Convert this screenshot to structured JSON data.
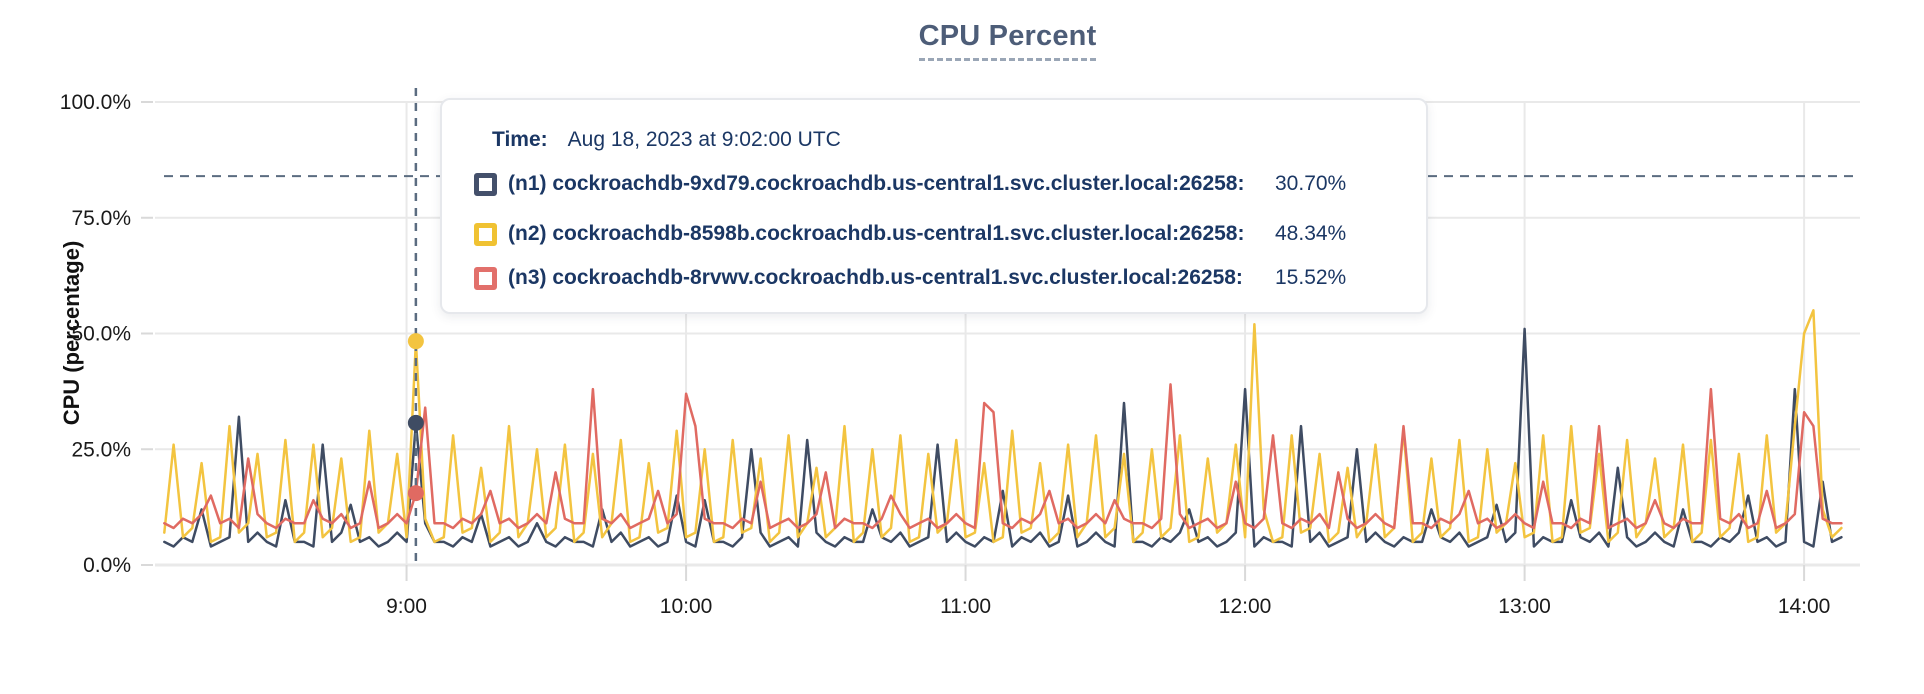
{
  "page": {
    "title": "CPU Percent"
  },
  "axes": {
    "ylabel": "CPU (percentage)"
  },
  "tooltip": {
    "time_label": "Time:",
    "time_value": "Aug 18, 2023 at 9:02:00 UTC",
    "series": [
      {
        "label": "(n1) cockroachdb-9xd79.cockroachdb.us-central1.svc.cluster.local:26258:",
        "value": "30.70%",
        "color": "#44506b"
      },
      {
        "label": "(n2) cockroachdb-8598b.cockroachdb.us-central1.svc.cluster.local:26258:",
        "value": "48.34%",
        "color": "#f0c232"
      },
      {
        "label": "(n3) cockroachdb-8rvwv.cockroachdb.us-central1.svc.cluster.local:26258:",
        "value": "15.52%",
        "color": "#e2706b"
      }
    ]
  },
  "colors": {
    "grid": "#e9e9e9",
    "tick": "#d9d9d9",
    "axis_text": "#1a1a1a",
    "crosshair": "#5b6c80",
    "threshold": "#5b6c80",
    "title": "#4d5d78",
    "tooltip_text": "#1b3764"
  },
  "chart_data": {
    "type": "line",
    "title": "CPU Percent",
    "xlabel": "",
    "ylabel": "CPU (percentage)",
    "ylim": [
      0,
      100
    ],
    "grid": true,
    "legend_position": "tooltip-overlay",
    "y_ticks": [
      {
        "v": 0,
        "label": "0.0%"
      },
      {
        "v": 25,
        "label": "25.0%"
      },
      {
        "v": 50,
        "label": "50.0%"
      },
      {
        "v": 75,
        "label": "75.0%"
      },
      {
        "v": 100,
        "label": "100.0%"
      }
    ],
    "x_ticks": [
      {
        "m": 540,
        "label": "9:00"
      },
      {
        "m": 600,
        "label": "10:00"
      },
      {
        "m": 660,
        "label": "11:00"
      },
      {
        "m": 720,
        "label": "12:00"
      },
      {
        "m": 780,
        "label": "13:00"
      },
      {
        "m": 840,
        "label": "14:00"
      }
    ],
    "x_domain_minutes": [
      486,
      852
    ],
    "sample_start_minute": 488,
    "sample_step_minutes": 2,
    "threshold_percent": 84,
    "hover": {
      "minute": 542,
      "time_label": "Aug 18, 2023 at 9:02:00 UTC"
    },
    "series": [
      {
        "id": "n1",
        "name": "(n1) cockroachdb-9xd79.cockroachdb.us-central1.svc.cluster.local:26258",
        "color": "#3f4c63",
        "hover_value": 30.7,
        "values": [
          5,
          4,
          6,
          5,
          12,
          4,
          5,
          6,
          32,
          5,
          7,
          5,
          4,
          14,
          5,
          5,
          4,
          26,
          5,
          7,
          13,
          5,
          6,
          4,
          5,
          7,
          5,
          30.7,
          9,
          5,
          5,
          4,
          6,
          5,
          11,
          4,
          5,
          6,
          4,
          5,
          9,
          5,
          4,
          6,
          5,
          5,
          4,
          12,
          5,
          7,
          4,
          5,
          6,
          4,
          5,
          15,
          5,
          4,
          14,
          5,
          5,
          4,
          6,
          25,
          7,
          4,
          5,
          6,
          4,
          27,
          7,
          5,
          4,
          6,
          5,
          5,
          12,
          6,
          5,
          7,
          4,
          5,
          6,
          26,
          5,
          7,
          5,
          4,
          6,
          5,
          16,
          4,
          6,
          5,
          7,
          4,
          5,
          15,
          4,
          5,
          7,
          5,
          4,
          35,
          5,
          5,
          4,
          6,
          5,
          7,
          12,
          5,
          6,
          4,
          5,
          7,
          38,
          4,
          6,
          5,
          5,
          4,
          30,
          5,
          7,
          4,
          5,
          6,
          25,
          5,
          7,
          5,
          4,
          6,
          5,
          5,
          12,
          6,
          5,
          7,
          4,
          5,
          6,
          13,
          5,
          7,
          51,
          4,
          6,
          5,
          5,
          14,
          6,
          5,
          7,
          4,
          21,
          6,
          4,
          5,
          7,
          5,
          4,
          12,
          5,
          5,
          4,
          6,
          5,
          7,
          15,
          5,
          6,
          4,
          5,
          38,
          5,
          4,
          18,
          5,
          6
        ]
      },
      {
        "id": "n2",
        "name": "(n2) cockroachdb-8598b.cockroachdb.us-central1.svc.cluster.local:26258",
        "color": "#f3c440",
        "hover_value": 48.34,
        "values": [
          7,
          26,
          6,
          8,
          22,
          5,
          6,
          30,
          7,
          9,
          24,
          6,
          7,
          27,
          5,
          7,
          26,
          6,
          8,
          23,
          5,
          6,
          29,
          7,
          9,
          24,
          6,
          48.3,
          10,
          5,
          6,
          28,
          7,
          8,
          21,
          5,
          7,
          30,
          6,
          9,
          25,
          6,
          8,
          26,
          5,
          7,
          24,
          6,
          9,
          27,
          5,
          6,
          22,
          7,
          8,
          29,
          6,
          7,
          25,
          5,
          6,
          27,
          7,
          8,
          23,
          5,
          7,
          28,
          6,
          9,
          21,
          6,
          8,
          30,
          5,
          7,
          25,
          6,
          8,
          28,
          5,
          6,
          24,
          7,
          9,
          27,
          6,
          7,
          22,
          5,
          6,
          29,
          7,
          8,
          22,
          5,
          7,
          26,
          6,
          9,
          28,
          6,
          8,
          24,
          5,
          7,
          25,
          6,
          8,
          28,
          5,
          6,
          23,
          7,
          9,
          26,
          6,
          52,
          12,
          5,
          6,
          28,
          7,
          8,
          24,
          5,
          7,
          21,
          6,
          9,
          26,
          6,
          8,
          29,
          5,
          7,
          23,
          6,
          8,
          27,
          5,
          6,
          25,
          7,
          9,
          22,
          6,
          7,
          28,
          5,
          6,
          30,
          7,
          8,
          24,
          5,
          7,
          27,
          6,
          9,
          23,
          6,
          8,
          26,
          5,
          7,
          27,
          6,
          8,
          24,
          5,
          6,
          28,
          7,
          9,
          30,
          50,
          55,
          12,
          6,
          8
        ]
      },
      {
        "id": "n3",
        "name": "(n3) cockroachdb-8rvwv.cockroachdb.us-central1.svc.cluster.local:26258",
        "color": "#e06a62",
        "hover_value": 15.52,
        "values": [
          9,
          8,
          10,
          9,
          11,
          15,
          9,
          10,
          8,
          23,
          11,
          9,
          8,
          10,
          9,
          9,
          14,
          10,
          9,
          11,
          8,
          9,
          18,
          8,
          9,
          11,
          9,
          15.5,
          34,
          9,
          9,
          8,
          10,
          9,
          11,
          16,
          9,
          10,
          8,
          9,
          11,
          9,
          20,
          10,
          9,
          9,
          38,
          10,
          9,
          11,
          8,
          9,
          10,
          16,
          9,
          11,
          37,
          30,
          10,
          9,
          9,
          8,
          10,
          9,
          18,
          8,
          9,
          10,
          8,
          9,
          11,
          20,
          8,
          10,
          9,
          9,
          8,
          10,
          15,
          11,
          8,
          9,
          10,
          8,
          9,
          11,
          9,
          8,
          35,
          33,
          9,
          8,
          10,
          9,
          11,
          16,
          9,
          10,
          8,
          9,
          11,
          9,
          14,
          10,
          9,
          9,
          8,
          10,
          39,
          11,
          8,
          9,
          10,
          8,
          9,
          18,
          9,
          8,
          10,
          28,
          9,
          8,
          10,
          9,
          11,
          8,
          20,
          10,
          8,
          9,
          11,
          9,
          8,
          30,
          9,
          9,
          8,
          10,
          9,
          11,
          16,
          9,
          10,
          8,
          9,
          11,
          9,
          8,
          18,
          9,
          9,
          8,
          10,
          9,
          30,
          8,
          9,
          10,
          8,
          9,
          14,
          9,
          8,
          10,
          9,
          9,
          38,
          10,
          9,
          11,
          8,
          9,
          16,
          8,
          9,
          11,
          33,
          30,
          10,
          9,
          9
        ]
      }
    ]
  }
}
